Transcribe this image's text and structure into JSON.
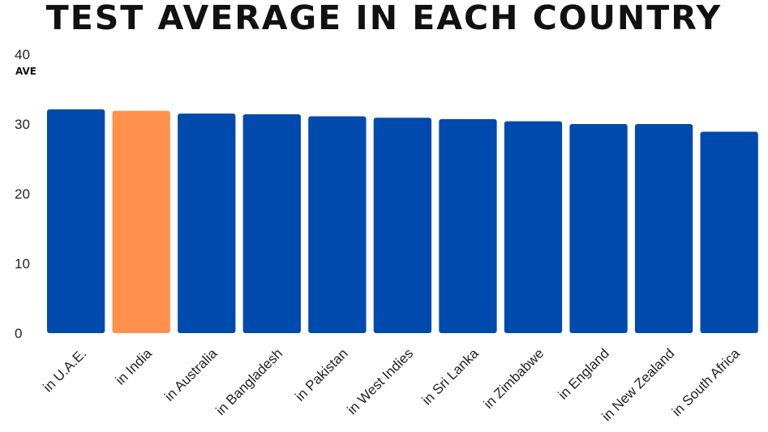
{
  "chart_data": {
    "type": "bar",
    "title": "TEST AVERAGE IN EACH COUNTRY",
    "ylabel": "AVE",
    "xlabel": "",
    "ylim": [
      0,
      40
    ],
    "yticks": [
      0,
      10,
      20,
      30,
      40
    ],
    "grid": false,
    "categories": [
      "in U.A.E.",
      "in India",
      "in Australia",
      "in Bangladesh",
      "in Pakistan",
      "in West Indies",
      "in Sri Lanka",
      "in Zimbabwe",
      "in England",
      "in New Zealand",
      "in South Africa"
    ],
    "values": [
      32.1,
      31.9,
      31.5,
      31.4,
      31.1,
      30.9,
      30.7,
      30.4,
      30.0,
      30.0,
      28.9
    ],
    "colors": [
      "#004aad",
      "#ff914d",
      "#004aad",
      "#004aad",
      "#004aad",
      "#004aad",
      "#004aad",
      "#004aad",
      "#004aad",
      "#004aad",
      "#004aad"
    ]
  }
}
